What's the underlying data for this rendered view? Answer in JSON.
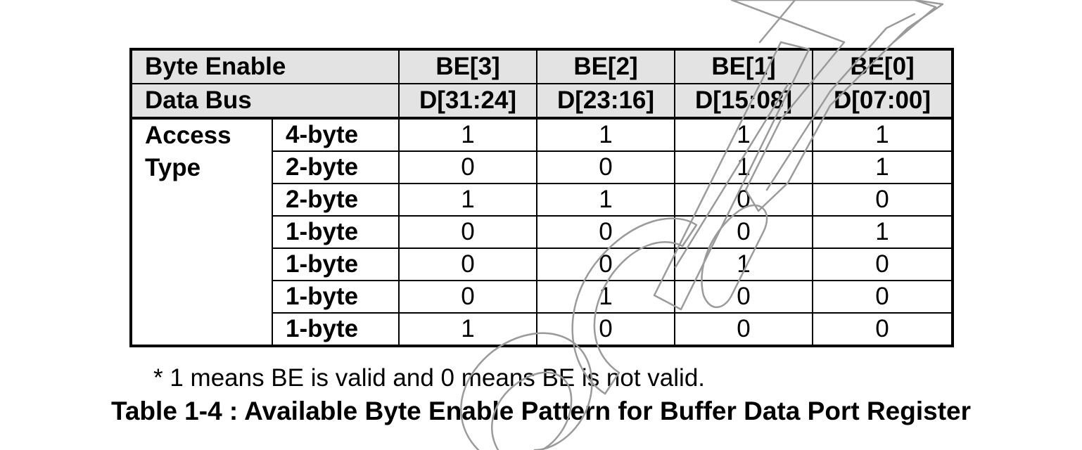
{
  "table": {
    "header_byte_enable": {
      "label": "Byte Enable",
      "columns": [
        "BE[3]",
        "BE[2]",
        "BE[1]",
        "BE[0]"
      ]
    },
    "header_data_bus": {
      "label": "Data Bus",
      "columns": [
        "D[31:24]",
        "D[23:16]",
        "D[15:08]",
        "D[07:00]"
      ]
    },
    "group_label": "Access Type",
    "rows": [
      {
        "type": "4-byte",
        "values": [
          "1",
          "1",
          "1",
          "1"
        ]
      },
      {
        "type": "2-byte",
        "values": [
          "0",
          "0",
          "1",
          "1"
        ]
      },
      {
        "type": "2-byte",
        "values": [
          "1",
          "1",
          "0",
          "0"
        ]
      },
      {
        "type": "1-byte",
        "values": [
          "0",
          "0",
          "0",
          "1"
        ]
      },
      {
        "type": "1-byte",
        "values": [
          "0",
          "0",
          "1",
          "0"
        ]
      },
      {
        "type": "1-byte",
        "values": [
          "0",
          "1",
          "0",
          "0"
        ]
      },
      {
        "type": "1-byte",
        "values": [
          "1",
          "0",
          "0",
          "0"
        ]
      }
    ]
  },
  "note": "* 1 means BE is valid and 0 means BE is not valid.",
  "caption": "Table 1-4 : Available Byte Enable Pattern for Buffer Data Port Register",
  "colors": {
    "header_background": "#e3e3e3",
    "watermark_stroke": "#9a9a9a"
  }
}
